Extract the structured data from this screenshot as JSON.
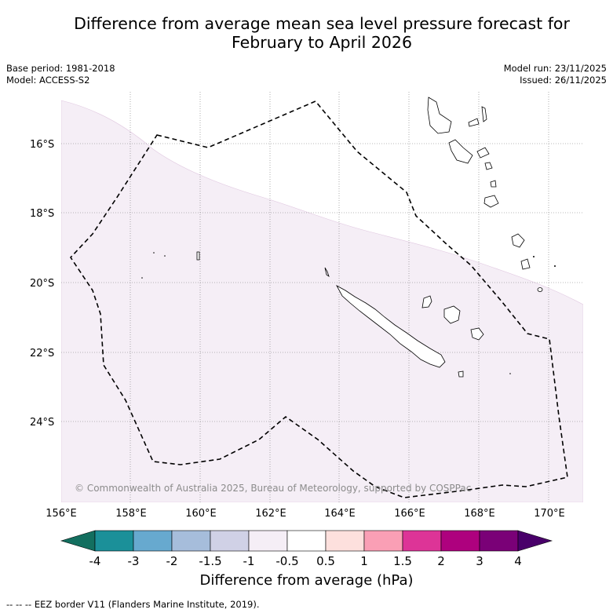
{
  "title": {
    "line1": "Difference from average mean sea level pressure forecast for",
    "line2": "February to April 2026"
  },
  "meta": {
    "base_period": "Base period: 1981-2018",
    "model": "Model: ACCESS-S2",
    "model_run": "Model run: 23/11/2025",
    "issued": "Issued: 26/11/2025"
  },
  "map": {
    "longitude_labels": [
      "156°E",
      "158°E",
      "160°E",
      "162°E",
      "164°E",
      "166°E",
      "168°E",
      "170°E"
    ],
    "latitude_labels": [
      "16°S",
      "18°S",
      "20°S",
      "22°S",
      "24°S"
    ],
    "copyright": "© Commonwealth of Australia 2025, Bureau of Meteorology, supported by COSPPac",
    "shaded_category": "-1 to -0.5 hPa",
    "shaded_color": "#f5eef6"
  },
  "colorbar": {
    "colors": [
      "#136f5f",
      "#1b9099",
      "#67a9cf",
      "#a6bddb",
      "#d0d1e6",
      "#f5eef6",
      "#ffffff",
      "#fde0dd",
      "#fa9fb5",
      "#dd3497",
      "#ae017e",
      "#7a0177",
      "#49006a"
    ],
    "labels": [
      "-4",
      "-3",
      "-2",
      "-1.5",
      "-1",
      "-0.5",
      "0.5",
      "1",
      "1.5",
      "2",
      "3",
      "4"
    ],
    "title": "Difference from average (hPa)"
  },
  "footnote": "--  --  -- EEZ border V11 (Flanders Marine Institute, 2019)."
}
